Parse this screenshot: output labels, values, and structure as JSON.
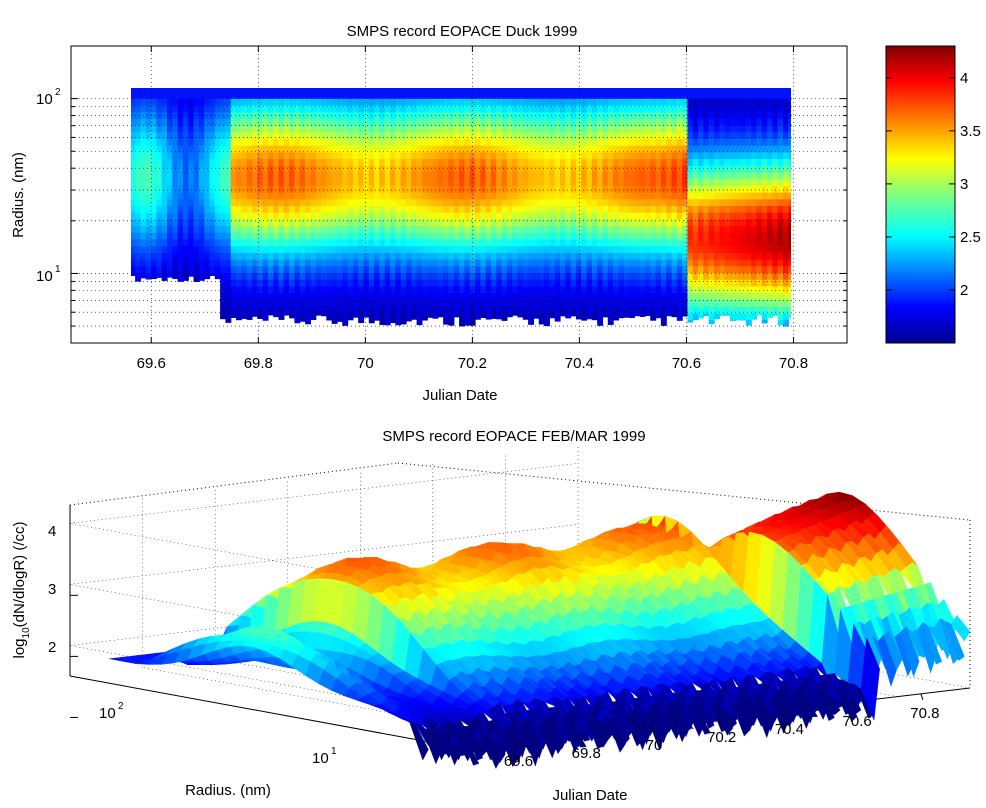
{
  "figures": {
    "top": {
      "title": "SMPS record EOPACE Duck 1999",
      "xlabel": "Julian Date",
      "ylabel": "Radius. (nm)"
    },
    "bottom": {
      "title": "SMPS record EOPACE FEB/MAR 1999",
      "xlabel": "Julian Date",
      "ylabel": "Radius. (nm)",
      "zlabel": "log10(dN/dlogR) (/cc)"
    }
  },
  "chart_data": [
    {
      "type": "heatmap",
      "title": "SMPS record EOPACE Duck 1999",
      "xlabel": "Julian Date",
      "ylabel": "Radius. (nm)",
      "xlim": [
        69.45,
        70.9
      ],
      "ylim": [
        4,
        200
      ],
      "yscale": "log",
      "x_ticks": [
        69.6,
        69.8,
        70,
        70.2,
        70.4,
        70.6,
        70.8
      ],
      "y_ticks": [
        {
          "value": 10,
          "label": "10^1"
        },
        {
          "value": 100,
          "label": "10^2"
        }
      ],
      "data_extent": {
        "x": [
          69.55,
          70.84
        ],
        "y": [
          5,
          120
        ]
      },
      "grid": true,
      "colormap": "jet",
      "colorbar": {
        "range": [
          1.5,
          4.3
        ],
        "ticks": [
          2,
          2.5,
          3,
          3.5,
          4
        ]
      },
      "features": [
        {
          "x_range": [
            69.55,
            69.75
          ],
          "description_level": 2.3
        },
        {
          "x_range": [
            69.75,
            70.55
          ],
          "description_level": 3.6
        },
        {
          "x_range": [
            70.55,
            70.84
          ],
          "description_level": 4.2
        }
      ]
    },
    {
      "type": "surface",
      "title": "SMPS record EOPACE FEB/MAR 1999",
      "xlabel": "Julian Date",
      "ylabel": "Radius. (nm)",
      "zlabel": "log10(dN/dlogR) (/cc)",
      "x_ticks": [
        69.6,
        69.8,
        70,
        70.2,
        70.4,
        70.6,
        70.8
      ],
      "y_ticks": [
        {
          "value": 100,
          "label": "10^2"
        },
        {
          "value": 10,
          "label": "10^1"
        }
      ],
      "z_ticks": [
        2,
        3,
        4
      ],
      "zlim": [
        1.5,
        4.3
      ],
      "grid": true,
      "colormap": "jet"
    }
  ],
  "colors": {
    "axis": "#000000",
    "grid": "#000000",
    "background": "#ffffff"
  }
}
